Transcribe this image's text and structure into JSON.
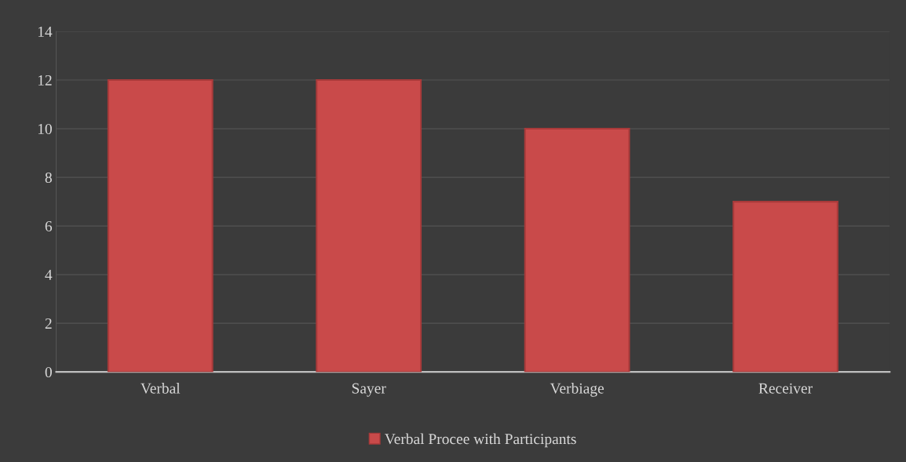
{
  "chart_data": {
    "type": "bar",
    "categories": [
      "Verbal",
      "Sayer",
      "Verbiage",
      "Receiver"
    ],
    "series": [
      {
        "name": "Verbal Procee with Participants",
        "color": "#c94a4a",
        "values": [
          12,
          12,
          10,
          7
        ]
      }
    ],
    "ylim": [
      0,
      14
    ],
    "yticks": [
      0,
      2,
      4,
      6,
      8,
      10,
      12,
      14
    ],
    "grid": "y",
    "legend": "bottom"
  }
}
